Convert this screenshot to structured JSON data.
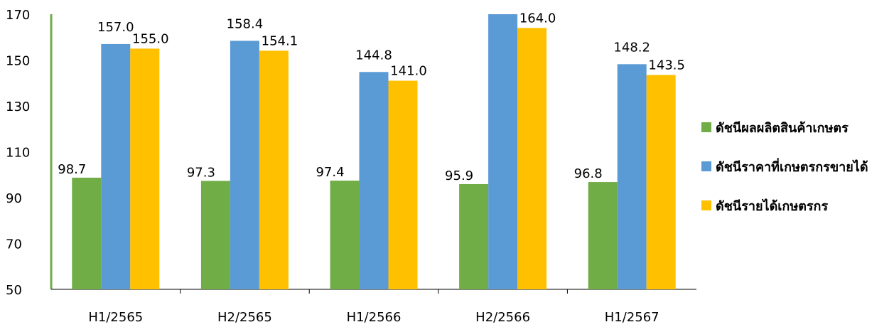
{
  "chart_data": {
    "type": "bar",
    "categories": [
      "H1/2565",
      "H2/2565",
      "H1/2566",
      "H2/2566",
      "H1/2567"
    ],
    "series": [
      {
        "name": "ดัชนีผลผลิตสินค้าเกษตร",
        "color": "#70ad47",
        "values": [
          98.7,
          97.3,
          97.4,
          95.9,
          96.8
        ]
      },
      {
        "name": "ดัชนีราคาที่เกษตรกรขายได้",
        "color": "#5b9bd5",
        "values": [
          157.0,
          158.4,
          144.8,
          171.0,
          148.2
        ]
      },
      {
        "name": "ดัชนีรายได้เกษตรกร",
        "color": "#ffc000",
        "values": [
          155.0,
          154.1,
          141.0,
          164.0,
          143.5
        ]
      }
    ],
    "data_labels": [
      [
        "98.7",
        "97.3",
        "97.4",
        "95.9",
        "96.8"
      ],
      [
        "157.0",
        "158.4",
        "144.8",
        "",
        "148.2"
      ],
      [
        "155.0",
        "154.1",
        "141.0",
        "164.0",
        "143.5"
      ]
    ],
    "ylim": [
      50,
      170
    ],
    "yticks": [
      "50",
      "70",
      "90",
      "110",
      "130",
      "150",
      "170"
    ],
    "grid": false,
    "legend_position": "right"
  }
}
